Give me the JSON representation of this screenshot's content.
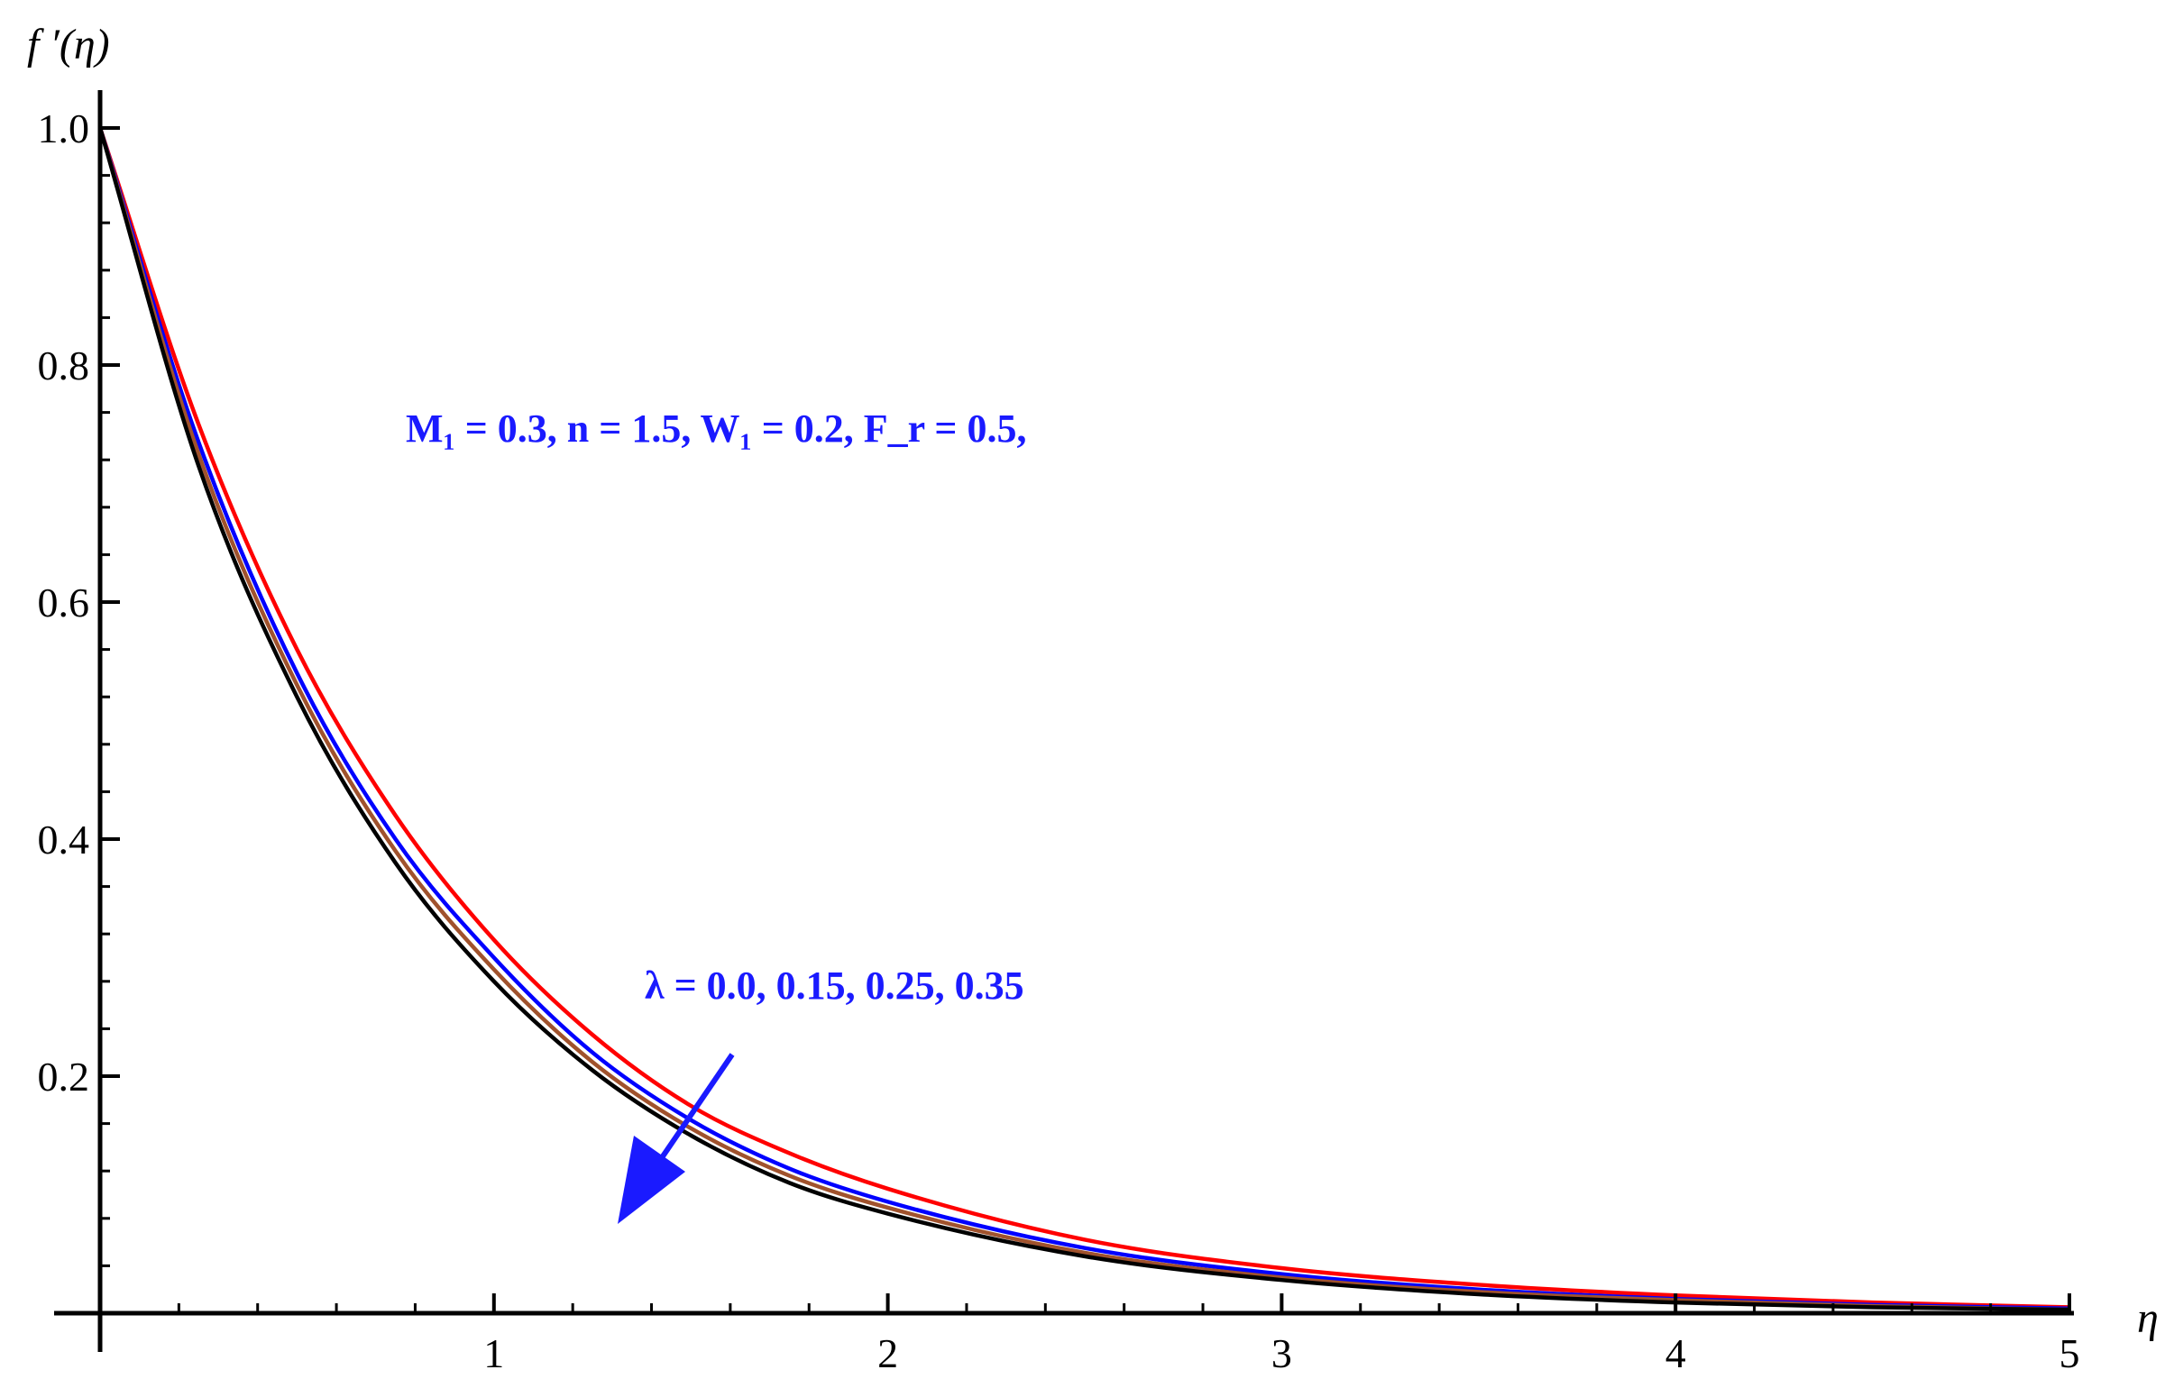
{
  "chart_data": {
    "type": "line",
    "title": "",
    "xlabel": "η",
    "ylabel": "f ′(η)",
    "xlim": [
      0,
      5
    ],
    "ylim": [
      0,
      1.0
    ],
    "x_ticks": [
      "1",
      "2",
      "3",
      "4",
      "5"
    ],
    "y_ticks": [
      "0.2",
      "0.4",
      "0.6",
      "0.8",
      "1.0"
    ],
    "grid": false,
    "legend": "none",
    "annotations": {
      "params": "M₁ = 0.3, n = 1.5, W₁ = 0.2, F_r = 0.5,",
      "lambda": "λ = 0.0, 0.15, 0.25, 0.35"
    },
    "series": [
      {
        "color": "#ff0000",
        "x": [
          0,
          0.25,
          0.5,
          0.75,
          1,
          1.25,
          1.5,
          1.75,
          2,
          2.5,
          3,
          3.5,
          4,
          4.5,
          5
        ],
        "values": [
          1.0,
          0.75,
          0.56,
          0.42,
          0.315,
          0.235,
          0.175,
          0.135,
          0.105,
          0.062,
          0.038,
          0.024,
          0.015,
          0.009,
          0.005
        ]
      },
      {
        "color": "#0000ff",
        "x": [
          0,
          0.25,
          0.5,
          0.75,
          1,
          1.25,
          1.5,
          1.75,
          2,
          2.5,
          3,
          3.5,
          4,
          4.5,
          5
        ],
        "values": [
          1.0,
          0.735,
          0.54,
          0.4,
          0.3,
          0.22,
          0.163,
          0.122,
          0.094,
          0.055,
          0.033,
          0.02,
          0.012,
          0.007,
          0.004
        ]
      },
      {
        "color": "#a0522d",
        "x": [
          0,
          0.25,
          0.5,
          0.75,
          1,
          1.25,
          1.5,
          1.75,
          2,
          2.5,
          3,
          3.5,
          4,
          4.5,
          5
        ],
        "values": [
          1.0,
          0.725,
          0.53,
          0.39,
          0.29,
          0.212,
          0.156,
          0.116,
          0.089,
          0.051,
          0.03,
          0.018,
          0.011,
          0.006,
          0.003
        ]
      },
      {
        "color": "#000000",
        "x": [
          0,
          0.25,
          0.5,
          0.75,
          1,
          1.25,
          1.5,
          1.75,
          2,
          2.5,
          3,
          3.5,
          4,
          4.5,
          5
        ],
        "values": [
          1.0,
          0.715,
          0.52,
          0.38,
          0.28,
          0.205,
          0.15,
          0.11,
          0.084,
          0.048,
          0.028,
          0.016,
          0.009,
          0.005,
          0.003
        ]
      }
    ],
    "arrow_color": "#1a1aff"
  }
}
